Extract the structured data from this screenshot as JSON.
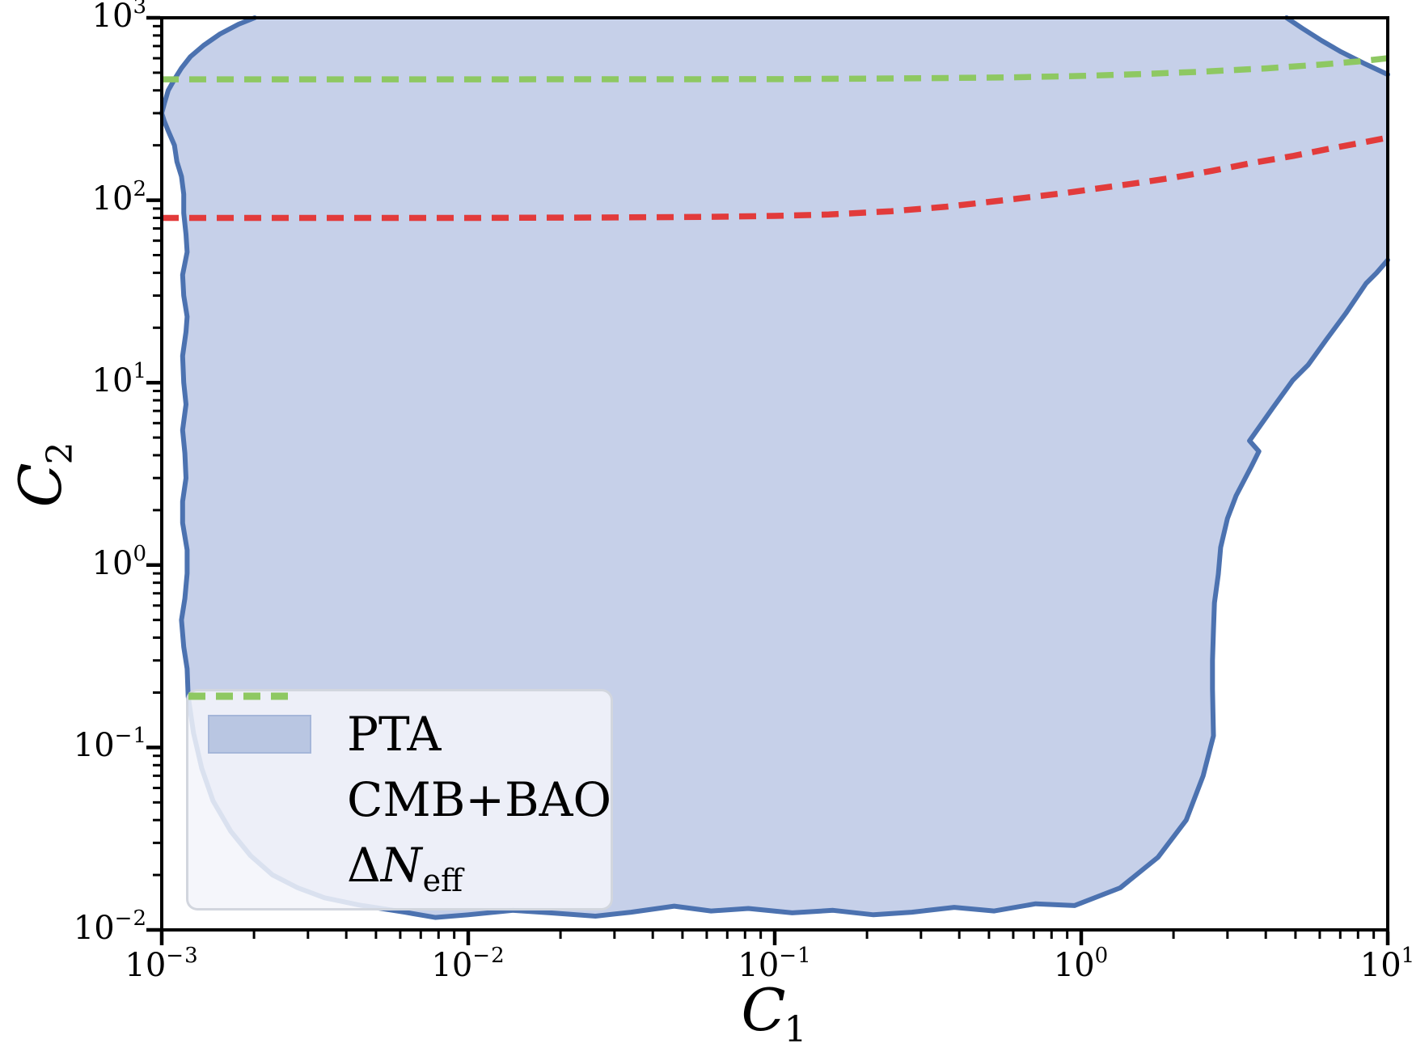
{
  "figure": {
    "bg": "#ffffff"
  },
  "axes": {
    "xlabel": {
      "base": "C",
      "sub": "1"
    },
    "ylabel": {
      "base": "C",
      "sub": "2"
    },
    "tick_mantissa": "10",
    "x_tick_exponents": [
      -3,
      -2,
      -1,
      0,
      1
    ],
    "y_tick_exponents": [
      -2,
      -1,
      0,
      1,
      2,
      3
    ],
    "spine_color": "#000000",
    "tick_color": "#000000"
  },
  "legend": {
    "items": [
      {
        "label": "PTA",
        "swatch": "patch",
        "color": "#b9c6e2"
      },
      {
        "label": "CMB+BAO",
        "swatch": "dashed",
        "color": "#e23b3b"
      },
      {
        "label": "ΔN_eff",
        "label_delta": "Δ",
        "label_N": "N",
        "label_sub": "eff",
        "swatch": "dashed",
        "color": "#8ec862"
      }
    ]
  },
  "chart_data": {
    "type": "area",
    "title": "",
    "xlabel": "C_1",
    "ylabel": "C_2",
    "xscale": "log",
    "yscale": "log",
    "xlim": [
      0.001,
      10
    ],
    "ylim": [
      0.01,
      1000
    ],
    "grid": false,
    "legend_position": "lower left",
    "series": [
      {
        "name": "PTA",
        "type": "filled-region",
        "fill": "#c6d0e9",
        "edge": "#4c72b0",
        "edge_width": 6,
        "segments": {
          "top_left_arc": [
            [
              0.001,
              300
            ],
            [
              0.00102,
              340
            ],
            [
              0.00105,
              400
            ],
            [
              0.0011,
              460
            ],
            [
              0.00116,
              530
            ],
            [
              0.00124,
              612
            ],
            [
              0.00137,
              706
            ],
            [
              0.00155,
              815
            ],
            [
              0.00178,
              922
            ],
            [
              0.00201,
              1000
            ]
          ],
          "top_right_arc": [
            [
              4.68,
              1000
            ],
            [
              5.26,
              876
            ],
            [
              6.08,
              751
            ],
            [
              7.04,
              651
            ],
            [
              8.34,
              564
            ],
            [
              10,
              489
            ]
          ],
          "main_boundary": [
            [
              10,
              47
            ],
            [
              9.2,
              40
            ],
            [
              8.5,
              35
            ],
            [
              7.3,
              24
            ],
            [
              6.3,
              17.2
            ],
            [
              5.5,
              12.5
            ],
            [
              4.9,
              10.3
            ],
            [
              4.2,
              7.2
            ],
            [
              3.54,
              4.8
            ],
            [
              3.8,
              4.2
            ],
            [
              3.6,
              3.5
            ],
            [
              3.2,
              2.4
            ],
            [
              3.0,
              1.8
            ],
            [
              2.85,
              1.25
            ],
            [
              2.8,
              0.89
            ],
            [
              2.72,
              0.62
            ],
            [
              2.7,
              0.44
            ],
            [
              2.68,
              0.3
            ],
            [
              2.68,
              0.21
            ],
            [
              2.69,
              0.155
            ],
            [
              2.7,
              0.116
            ],
            [
              2.5,
              0.07
            ],
            [
              2.2,
              0.04
            ],
            [
              1.78,
              0.025
            ],
            [
              1.34,
              0.017
            ],
            [
              0.95,
              0.0136
            ],
            [
              0.71,
              0.0139
            ],
            [
              0.52,
              0.0127
            ],
            [
              0.385,
              0.0133
            ],
            [
              0.28,
              0.0125
            ],
            [
              0.21,
              0.0121
            ],
            [
              0.155,
              0.0128
            ],
            [
              0.114,
              0.0124
            ],
            [
              0.082,
              0.0131
            ],
            [
              0.062,
              0.0127
            ],
            [
              0.047,
              0.0135
            ],
            [
              0.034,
              0.0125
            ],
            [
              0.026,
              0.0119
            ],
            [
              0.0185,
              0.0124
            ],
            [
              0.014,
              0.0128
            ],
            [
              0.01,
              0.0121
            ],
            [
              0.0078,
              0.0117
            ],
            [
              0.0062,
              0.0125
            ],
            [
              0.0052,
              0.0131
            ],
            [
              0.0044,
              0.0137
            ],
            [
              0.0034,
              0.015
            ],
            [
              0.00278,
              0.017
            ],
            [
              0.0023,
              0.02
            ],
            [
              0.00195,
              0.0255
            ],
            [
              0.00168,
              0.0347
            ],
            [
              0.00147,
              0.051
            ],
            [
              0.00135,
              0.077
            ],
            [
              0.00127,
              0.12
            ],
            [
              0.00122,
              0.19
            ],
            [
              0.00121,
              0.27
            ],
            [
              0.00118,
              0.356
            ],
            [
              0.00116,
              0.5
            ],
            [
              0.00119,
              0.656
            ],
            [
              0.00121,
              0.9
            ],
            [
              0.00121,
              1.21
            ],
            [
              0.00117,
              1.7
            ],
            [
              0.00117,
              2.23
            ],
            [
              0.0012,
              3.0
            ],
            [
              0.00119,
              4.1
            ],
            [
              0.00117,
              5.5
            ],
            [
              0.0012,
              7.6
            ],
            [
              0.00118,
              10
            ],
            [
              0.00117,
              14
            ],
            [
              0.0012,
              19
            ],
            [
              0.00121,
              23
            ],
            [
              0.00118,
              30
            ],
            [
              0.00117,
              39
            ],
            [
              0.00121,
              52
            ],
            [
              0.0012,
              65
            ],
            [
              0.00118,
              85
            ],
            [
              0.00118,
              108
            ],
            [
              0.00116,
              135
            ],
            [
              0.00112,
              163
            ],
            [
              0.0011,
              200
            ],
            [
              0.00105,
              240
            ],
            [
              0.00102,
              270
            ],
            [
              0.001,
              300
            ]
          ]
        }
      },
      {
        "name": "CMB+BAO",
        "type": "dashed-line",
        "color": "#e23b3b",
        "width": 7.5,
        "dash": [
          21,
          13
        ],
        "points": [
          [
            0.001,
            80
          ],
          [
            0.003,
            80
          ],
          [
            0.01,
            80
          ],
          [
            0.03,
            80.5
          ],
          [
            0.06,
            81
          ],
          [
            0.1,
            82
          ],
          [
            0.15,
            83.5
          ],
          [
            0.24,
            87
          ],
          [
            0.36,
            92
          ],
          [
            0.59,
            101
          ],
          [
            0.9,
            110
          ],
          [
            1.46,
            123
          ],
          [
            2.0,
            133
          ],
          [
            2.68,
            145
          ],
          [
            3.6,
            160
          ],
          [
            4.92,
            175
          ],
          [
            6.5,
            192
          ],
          [
            8.0,
            205
          ],
          [
            10,
            220
          ]
        ]
      },
      {
        "name": "ΔN_eff",
        "type": "dashed-line",
        "color": "#8ec862",
        "width": 7.5,
        "dash": [
          21,
          13
        ],
        "points": [
          [
            0.001,
            460
          ],
          [
            0.01,
            460
          ],
          [
            0.1,
            461
          ],
          [
            0.3,
            466
          ],
          [
            0.6,
            472
          ],
          [
            1.0,
            480
          ],
          [
            1.6,
            492
          ],
          [
            2.5,
            507
          ],
          [
            4.0,
            528
          ],
          [
            6.0,
            553
          ],
          [
            8.0,
            576
          ],
          [
            10,
            600
          ]
        ]
      }
    ]
  }
}
